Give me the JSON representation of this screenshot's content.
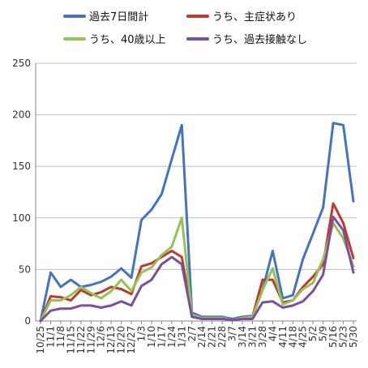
{
  "chart_data": {
    "type": "line",
    "legend": [
      {
        "name": "過去7日間計",
        "color": "#4472C4"
      },
      {
        "name": "うち、主症状あり",
        "color": "#C0392B"
      },
      {
        "name": "うち、40歳以上",
        "color": "#92C353"
      },
      {
        "name": "うち、過去接触なし",
        "color": "#7B4FA0"
      }
    ],
    "legend_placement": "top",
    "ylim": [
      0,
      250
    ],
    "y_ticks": [
      "0",
      "50",
      "100",
      "150",
      "200",
      "250"
    ],
    "grid": "horizontal",
    "x_ticks": [
      "10/25",
      "11/1",
      "11/8",
      "11/15",
      "11/22",
      "11/29",
      "12/6",
      "12/13",
      "12/20",
      "12/27",
      "1/3",
      "1/10",
      "1/17",
      "1/24",
      "1/31",
      "2/7",
      "2/14",
      "2/21",
      "2/28",
      "3/7",
      "3/14",
      "3/21",
      "3/28",
      "4/4",
      "4/11",
      "4/18",
      "4/25",
      "5/2",
      "5/9",
      "5/16",
      "5/23",
      "5/30"
    ],
    "series": [
      {
        "name": "過去7日間計",
        "color": "#4472C4",
        "values": [
          0,
          47,
          33,
          40,
          33,
          35,
          38,
          43,
          51,
          42,
          98,
          108,
          123,
          157,
          190,
          8,
          4,
          4,
          4,
          2,
          4,
          5,
          30,
          68,
          22,
          25,
          60,
          85,
          110,
          192,
          190,
          116
        ]
      },
      {
        "name": "うち、主症状あり",
        "color": "#C0392B",
        "values": [
          0,
          24,
          23,
          20,
          30,
          25,
          28,
          33,
          31,
          26,
          53,
          56,
          62,
          68,
          62,
          6,
          3,
          3,
          3,
          1,
          3,
          4,
          40,
          40,
          18,
          20,
          33,
          43,
          55,
          114,
          95,
          61
        ]
      },
      {
        "name": "うち、40歳以上",
        "color": "#92C353",
        "values": [
          0,
          20,
          20,
          25,
          33,
          27,
          22,
          29,
          40,
          29,
          47,
          52,
          64,
          72,
          100,
          6,
          3,
          3,
          3,
          1,
          3,
          4,
          30,
          51,
          16,
          20,
          31,
          37,
          60,
          95,
          80,
          53
        ]
      },
      {
        "name": "うち、過去接触なし",
        "color": "#7B4FA0",
        "values": [
          0,
          10,
          12,
          12,
          15,
          15,
          13,
          15,
          19,
          15,
          34,
          40,
          55,
          62,
          55,
          4,
          2,
          2,
          2,
          1,
          2,
          2,
          18,
          19,
          13,
          15,
          19,
          29,
          45,
          101,
          88,
          47
        ]
      }
    ]
  }
}
